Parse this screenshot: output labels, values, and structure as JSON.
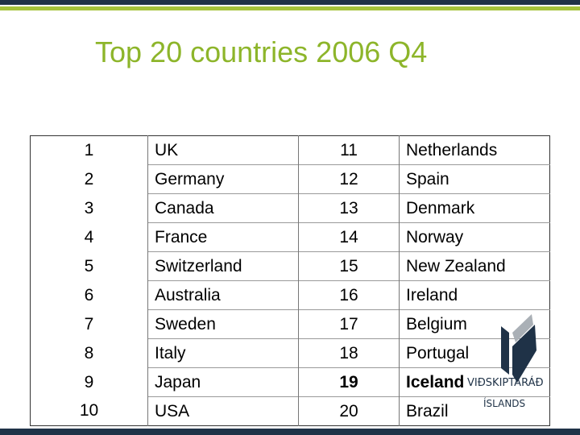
{
  "title": "Top 20 countries 2006 Q4",
  "table": {
    "rows": [
      [
        "1",
        "UK",
        "11",
        "Netherlands"
      ],
      [
        "2",
        "Germany",
        "12",
        "Spain"
      ],
      [
        "3",
        "Canada",
        "13",
        "Denmark"
      ],
      [
        "4",
        "France",
        "14",
        "Norway"
      ],
      [
        "5",
        "Switzerland",
        "15",
        "New Zealand"
      ],
      [
        "6",
        "Australia",
        "16",
        "Ireland"
      ],
      [
        "7",
        "Sweden",
        "17",
        "Belgium"
      ],
      [
        "8",
        "Italy",
        "18",
        "Portugal"
      ],
      [
        "9",
        "Japan",
        "19",
        "Iceland"
      ],
      [
        "10",
        "USA",
        "20",
        "Brazil"
      ]
    ]
  },
  "logo": {
    "line1": "VIÐSKIPTARÁÐ",
    "line2": "ÍSLANDS"
  }
}
